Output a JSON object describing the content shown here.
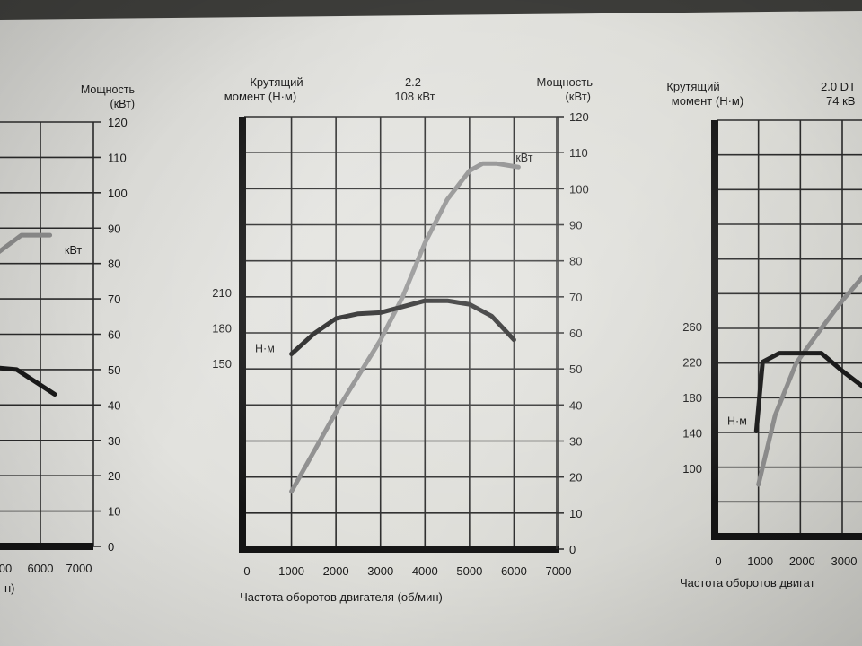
{
  "chart_data": [
    {
      "type": "line",
      "panel": "left-partial",
      "x_ticks": [
        "00",
        "6000",
        "7000"
      ],
      "xlabel": "н)",
      "right_axis_label": [
        "Мощность",
        "(кВт)"
      ],
      "right_ticks": [
        0,
        10,
        20,
        30,
        40,
        50,
        60,
        70,
        80,
        90,
        100,
        110,
        120
      ],
      "ylim_right": [
        0,
        120
      ],
      "series": [
        {
          "name": "кВт",
          "color": "#8a8a8a",
          "x": [
            5000,
            5600,
            6200
          ],
          "y": [
            82,
            88,
            88
          ]
        },
        {
          "color": "#1a1a1a",
          "x": [
            4700,
            5500,
            6300
          ],
          "y": [
            51,
            50,
            43
          ]
        }
      ]
    },
    {
      "type": "line",
      "panel": "center",
      "title": "2.2",
      "subtitle": "108 кВт",
      "left_axis_label": [
        "Крутящий",
        "момент (Н·м)"
      ],
      "right_axis_label": [
        "Мощность",
        "(кВт)"
      ],
      "xlabel": "Частота оборотов двигателя (об/мин)",
      "x_ticks": [
        0,
        1000,
        2000,
        3000,
        4000,
        5000,
        6000,
        7000
      ],
      "xlim": [
        0,
        7000
      ],
      "left_ticks": [
        150,
        180,
        210
      ],
      "right_ticks": [
        0,
        10,
        20,
        30,
        40,
        50,
        60,
        70,
        80,
        90,
        100,
        110,
        120
      ],
      "ylim_right": [
        0,
        120
      ],
      "grid": true,
      "series": [
        {
          "name": "Н·м",
          "color": "#1a1a1a",
          "x": [
            1000,
            1500,
            2000,
            2500,
            3000,
            3500,
            4000,
            4500,
            5000,
            5500,
            6000
          ],
          "y": [
            158,
            175,
            188,
            192,
            193,
            198,
            203,
            203,
            200,
            190,
            170
          ]
        },
        {
          "name": "кВт",
          "color": "#8a8a8a",
          "x": [
            1000,
            1500,
            2000,
            2500,
            3000,
            3500,
            4000,
            4500,
            5000,
            5300,
            5600,
            6100
          ],
          "y": [
            16,
            27,
            38,
            48,
            58,
            70,
            85,
            97,
            105,
            107,
            107,
            106
          ]
        }
      ]
    },
    {
      "type": "line",
      "panel": "right-partial",
      "title": "2.0 DT",
      "subtitle": "74 кВ",
      "left_axis_label": [
        "Крутящий",
        "момент (Н·м)"
      ],
      "xlabel": "Частота оборотов двигат",
      "x_ticks": [
        0,
        1000,
        2000,
        3000
      ],
      "left_ticks": [
        100,
        140,
        180,
        220,
        260
      ],
      "series": [
        {
          "name": "Н·м",
          "color": "#1a1a1a",
          "x": [
            950,
            1100,
            1500,
            2000,
            2500,
            3000,
            3500
          ],
          "y": [
            142,
            220,
            230,
            230,
            230,
            210,
            192
          ]
        },
        {
          "color": "#8a8a8a",
          "x": [
            1000,
            1400,
            1900,
            2500,
            3000,
            3500
          ],
          "y": [
            15,
            35,
            50,
            60,
            68,
            75
          ]
        }
      ]
    }
  ]
}
